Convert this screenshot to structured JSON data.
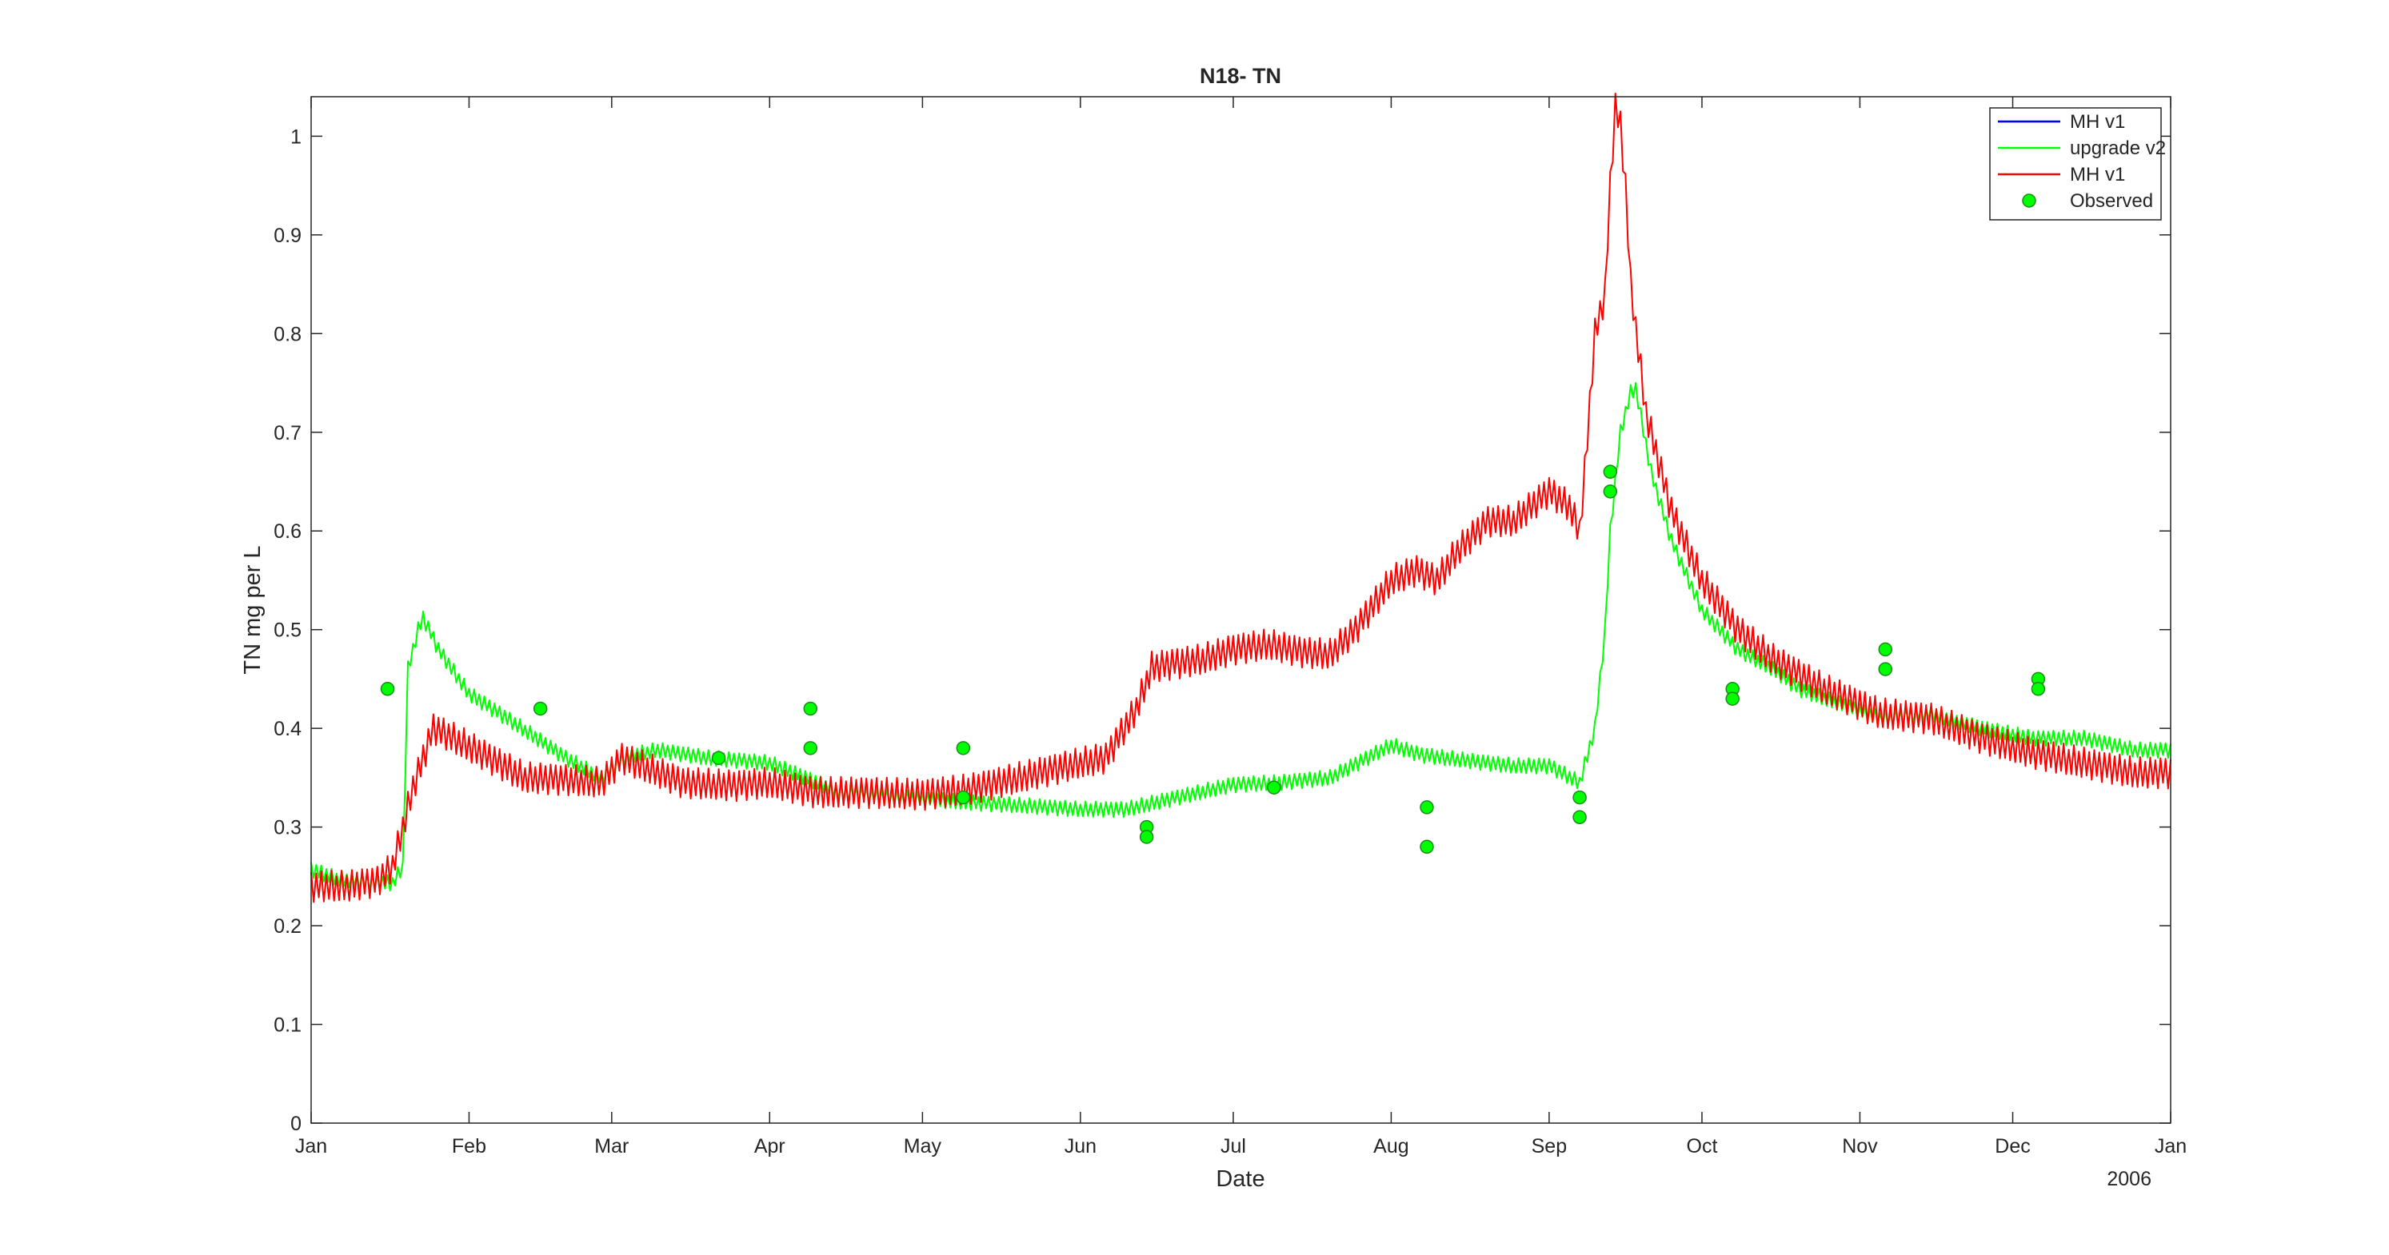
{
  "chart_data": {
    "type": "line",
    "title": "N18- TN",
    "xlabel": "Date",
    "ylabel": "TN mg per L",
    "x_year_label": "2006",
    "xlim": [
      "2006-01-01",
      "2007-01-01"
    ],
    "ylim": [
      0,
      1.04
    ],
    "x_ticks": [
      {
        "date": "2006-01-01",
        "label": "Jan"
      },
      {
        "date": "2006-02-01",
        "label": "Feb"
      },
      {
        "date": "2006-03-01",
        "label": "Mar"
      },
      {
        "date": "2006-04-01",
        "label": "Apr"
      },
      {
        "date": "2006-05-01",
        "label": "May"
      },
      {
        "date": "2006-06-01",
        "label": "Jun"
      },
      {
        "date": "2006-07-01",
        "label": "Jul"
      },
      {
        "date": "2006-08-01",
        "label": "Aug"
      },
      {
        "date": "2006-09-01",
        "label": "Sep"
      },
      {
        "date": "2006-10-01",
        "label": "Oct"
      },
      {
        "date": "2006-11-01",
        "label": "Nov"
      },
      {
        "date": "2006-12-01",
        "label": "Dec"
      },
      {
        "date": "2007-01-01",
        "label": "Jan"
      }
    ],
    "y_ticks": [
      {
        "value": 0,
        "label": "0"
      },
      {
        "value": 0.1,
        "label": "0.1"
      },
      {
        "value": 0.2,
        "label": "0.2"
      },
      {
        "value": 0.3,
        "label": "0.3"
      },
      {
        "value": 0.4,
        "label": "0.4"
      },
      {
        "value": 0.5,
        "label": "0.5"
      },
      {
        "value": 0.6,
        "label": "0.6"
      },
      {
        "value": 0.7,
        "label": "0.7"
      },
      {
        "value": 0.8,
        "label": "0.8"
      },
      {
        "value": 0.9,
        "label": "0.9"
      },
      {
        "value": 1,
        "label": "1"
      }
    ],
    "grid": false,
    "legend_position": "top-right",
    "series": [
      {
        "name": "MH v1",
        "color": "#0000ff",
        "style": "line",
        "points": []
      },
      {
        "name": "upgrade v2",
        "color": "#00ff00",
        "style": "line",
        "noise": 0.008,
        "points": [
          [
            "2006-01-01",
            0.257
          ],
          [
            "2006-01-06",
            0.248
          ],
          [
            "2006-01-11",
            0.245
          ],
          [
            "2006-01-17",
            0.243
          ],
          [
            "2006-01-19",
            0.26
          ],
          [
            "2006-01-20",
            0.46
          ],
          [
            "2006-01-22",
            0.5
          ],
          [
            "2006-01-23",
            0.512
          ],
          [
            "2006-01-26",
            0.48
          ],
          [
            "2006-02-01",
            0.435
          ],
          [
            "2006-02-10",
            0.405
          ],
          [
            "2006-02-20",
            0.37
          ],
          [
            "2006-02-27",
            0.35
          ],
          [
            "2006-03-04",
            0.372
          ],
          [
            "2006-03-10",
            0.378
          ],
          [
            "2006-03-20",
            0.37
          ],
          [
            "2006-04-01",
            0.365
          ],
          [
            "2006-04-08",
            0.35
          ],
          [
            "2006-04-15",
            0.335
          ],
          [
            "2006-04-25",
            0.33
          ],
          [
            "2006-05-10",
            0.325
          ],
          [
            "2006-05-20",
            0.322
          ],
          [
            "2006-06-01",
            0.318
          ],
          [
            "2006-06-10",
            0.318
          ],
          [
            "2006-06-20",
            0.33
          ],
          [
            "2006-07-01",
            0.343
          ],
          [
            "2006-07-10",
            0.345
          ],
          [
            "2006-07-20",
            0.35
          ],
          [
            "2006-08-01",
            0.383
          ],
          [
            "2006-08-07",
            0.373
          ],
          [
            "2006-08-15",
            0.368
          ],
          [
            "2006-08-25",
            0.362
          ],
          [
            "2006-09-01",
            0.362
          ],
          [
            "2006-09-07",
            0.345
          ],
          [
            "2006-09-10",
            0.4
          ],
          [
            "2006-09-12",
            0.5
          ],
          [
            "2006-09-13",
            0.6
          ],
          [
            "2006-09-15",
            0.7
          ],
          [
            "2006-09-17",
            0.74
          ],
          [
            "2006-09-18",
            0.745
          ],
          [
            "2006-09-21",
            0.66
          ],
          [
            "2006-09-25",
            0.59
          ],
          [
            "2006-10-01",
            0.52
          ],
          [
            "2006-10-08",
            0.48
          ],
          [
            "2006-10-15",
            0.46
          ],
          [
            "2006-10-20",
            0.44
          ],
          [
            "2006-10-28",
            0.425
          ],
          [
            "2006-11-05",
            0.41
          ],
          [
            "2006-11-15",
            0.415
          ],
          [
            "2006-11-25",
            0.4
          ],
          [
            "2006-12-05",
            0.39
          ],
          [
            "2006-12-15",
            0.39
          ],
          [
            "2006-12-25",
            0.378
          ],
          [
            "2007-01-01",
            0.378
          ]
        ]
      },
      {
        "name": "MH v1",
        "color": "#ff0000",
        "style": "line",
        "noise": 0.016,
        "points": [
          [
            "2006-01-01",
            0.24
          ],
          [
            "2006-01-08",
            0.24
          ],
          [
            "2006-01-14",
            0.245
          ],
          [
            "2006-01-17",
            0.26
          ],
          [
            "2006-01-21",
            0.34
          ],
          [
            "2006-01-25",
            0.4
          ],
          [
            "2006-01-29",
            0.39
          ],
          [
            "2006-02-05",
            0.37
          ],
          [
            "2006-02-12",
            0.35
          ],
          [
            "2006-02-20",
            0.348
          ],
          [
            "2006-02-27",
            0.345
          ],
          [
            "2006-03-03",
            0.37
          ],
          [
            "2006-03-08",
            0.36
          ],
          [
            "2006-03-15",
            0.345
          ],
          [
            "2006-03-25",
            0.342
          ],
          [
            "2006-04-01",
            0.345
          ],
          [
            "2006-04-10",
            0.335
          ],
          [
            "2006-04-20",
            0.335
          ],
          [
            "2006-05-01",
            0.333
          ],
          [
            "2006-05-10",
            0.338
          ],
          [
            "2006-05-20",
            0.35
          ],
          [
            "2006-06-01",
            0.365
          ],
          [
            "2006-06-06",
            0.37
          ],
          [
            "2006-06-12",
            0.42
          ],
          [
            "2006-06-15",
            0.462
          ],
          [
            "2006-06-25",
            0.47
          ],
          [
            "2006-07-01",
            0.48
          ],
          [
            "2006-07-08",
            0.485
          ],
          [
            "2006-07-15",
            0.477
          ],
          [
            "2006-07-20",
            0.475
          ],
          [
            "2006-07-25",
            0.5
          ],
          [
            "2006-08-01",
            0.55
          ],
          [
            "2006-08-06",
            0.56
          ],
          [
            "2006-08-10",
            0.55
          ],
          [
            "2006-08-14",
            0.58
          ],
          [
            "2006-08-20",
            0.61
          ],
          [
            "2006-08-25",
            0.61
          ],
          [
            "2006-09-01",
            0.64
          ],
          [
            "2006-09-05",
            0.625
          ],
          [
            "2006-09-07",
            0.6
          ],
          [
            "2006-09-08",
            0.66
          ],
          [
            "2006-09-10",
            0.8
          ],
          [
            "2006-09-12",
            0.84
          ],
          [
            "2006-09-13",
            0.95
          ],
          [
            "2006-09-14",
            1.03
          ],
          [
            "2006-09-15",
            1.01
          ],
          [
            "2006-09-16",
            0.95
          ],
          [
            "2006-09-17",
            0.85
          ],
          [
            "2006-09-20",
            0.72
          ],
          [
            "2006-09-25",
            0.62
          ],
          [
            "2006-10-01",
            0.55
          ],
          [
            "2006-10-08",
            0.5
          ],
          [
            "2006-10-15",
            0.47
          ],
          [
            "2006-10-25",
            0.44
          ],
          [
            "2006-11-05",
            0.415
          ],
          [
            "2006-11-15",
            0.41
          ],
          [
            "2006-11-25",
            0.39
          ],
          [
            "2006-12-05",
            0.375
          ],
          [
            "2006-12-15",
            0.365
          ],
          [
            "2006-12-25",
            0.355
          ],
          [
            "2007-01-01",
            0.355
          ]
        ]
      },
      {
        "name": "Observed",
        "color": "#00ff00",
        "edge_color": "#1a8a1a",
        "style": "marker",
        "points": [
          [
            "2006-01-16",
            0.44
          ],
          [
            "2006-02-15",
            0.42
          ],
          [
            "2006-03-22",
            0.37
          ],
          [
            "2006-04-09",
            0.42
          ],
          [
            "2006-04-09",
            0.38
          ],
          [
            "2006-05-09",
            0.38
          ],
          [
            "2006-05-09",
            0.33
          ],
          [
            "2006-06-14",
            0.3
          ],
          [
            "2006-06-14",
            0.29
          ],
          [
            "2006-07-09",
            0.34
          ],
          [
            "2006-08-08",
            0.32
          ],
          [
            "2006-08-08",
            0.28
          ],
          [
            "2006-09-07",
            0.33
          ],
          [
            "2006-09-07",
            0.31
          ],
          [
            "2006-09-13",
            0.66
          ],
          [
            "2006-09-13",
            0.64
          ],
          [
            "2006-10-07",
            0.44
          ],
          [
            "2006-10-07",
            0.43
          ],
          [
            "2006-11-06",
            0.48
          ],
          [
            "2006-11-06",
            0.46
          ],
          [
            "2006-12-06",
            0.45
          ],
          [
            "2006-12-06",
            0.44
          ]
        ]
      }
    ]
  }
}
